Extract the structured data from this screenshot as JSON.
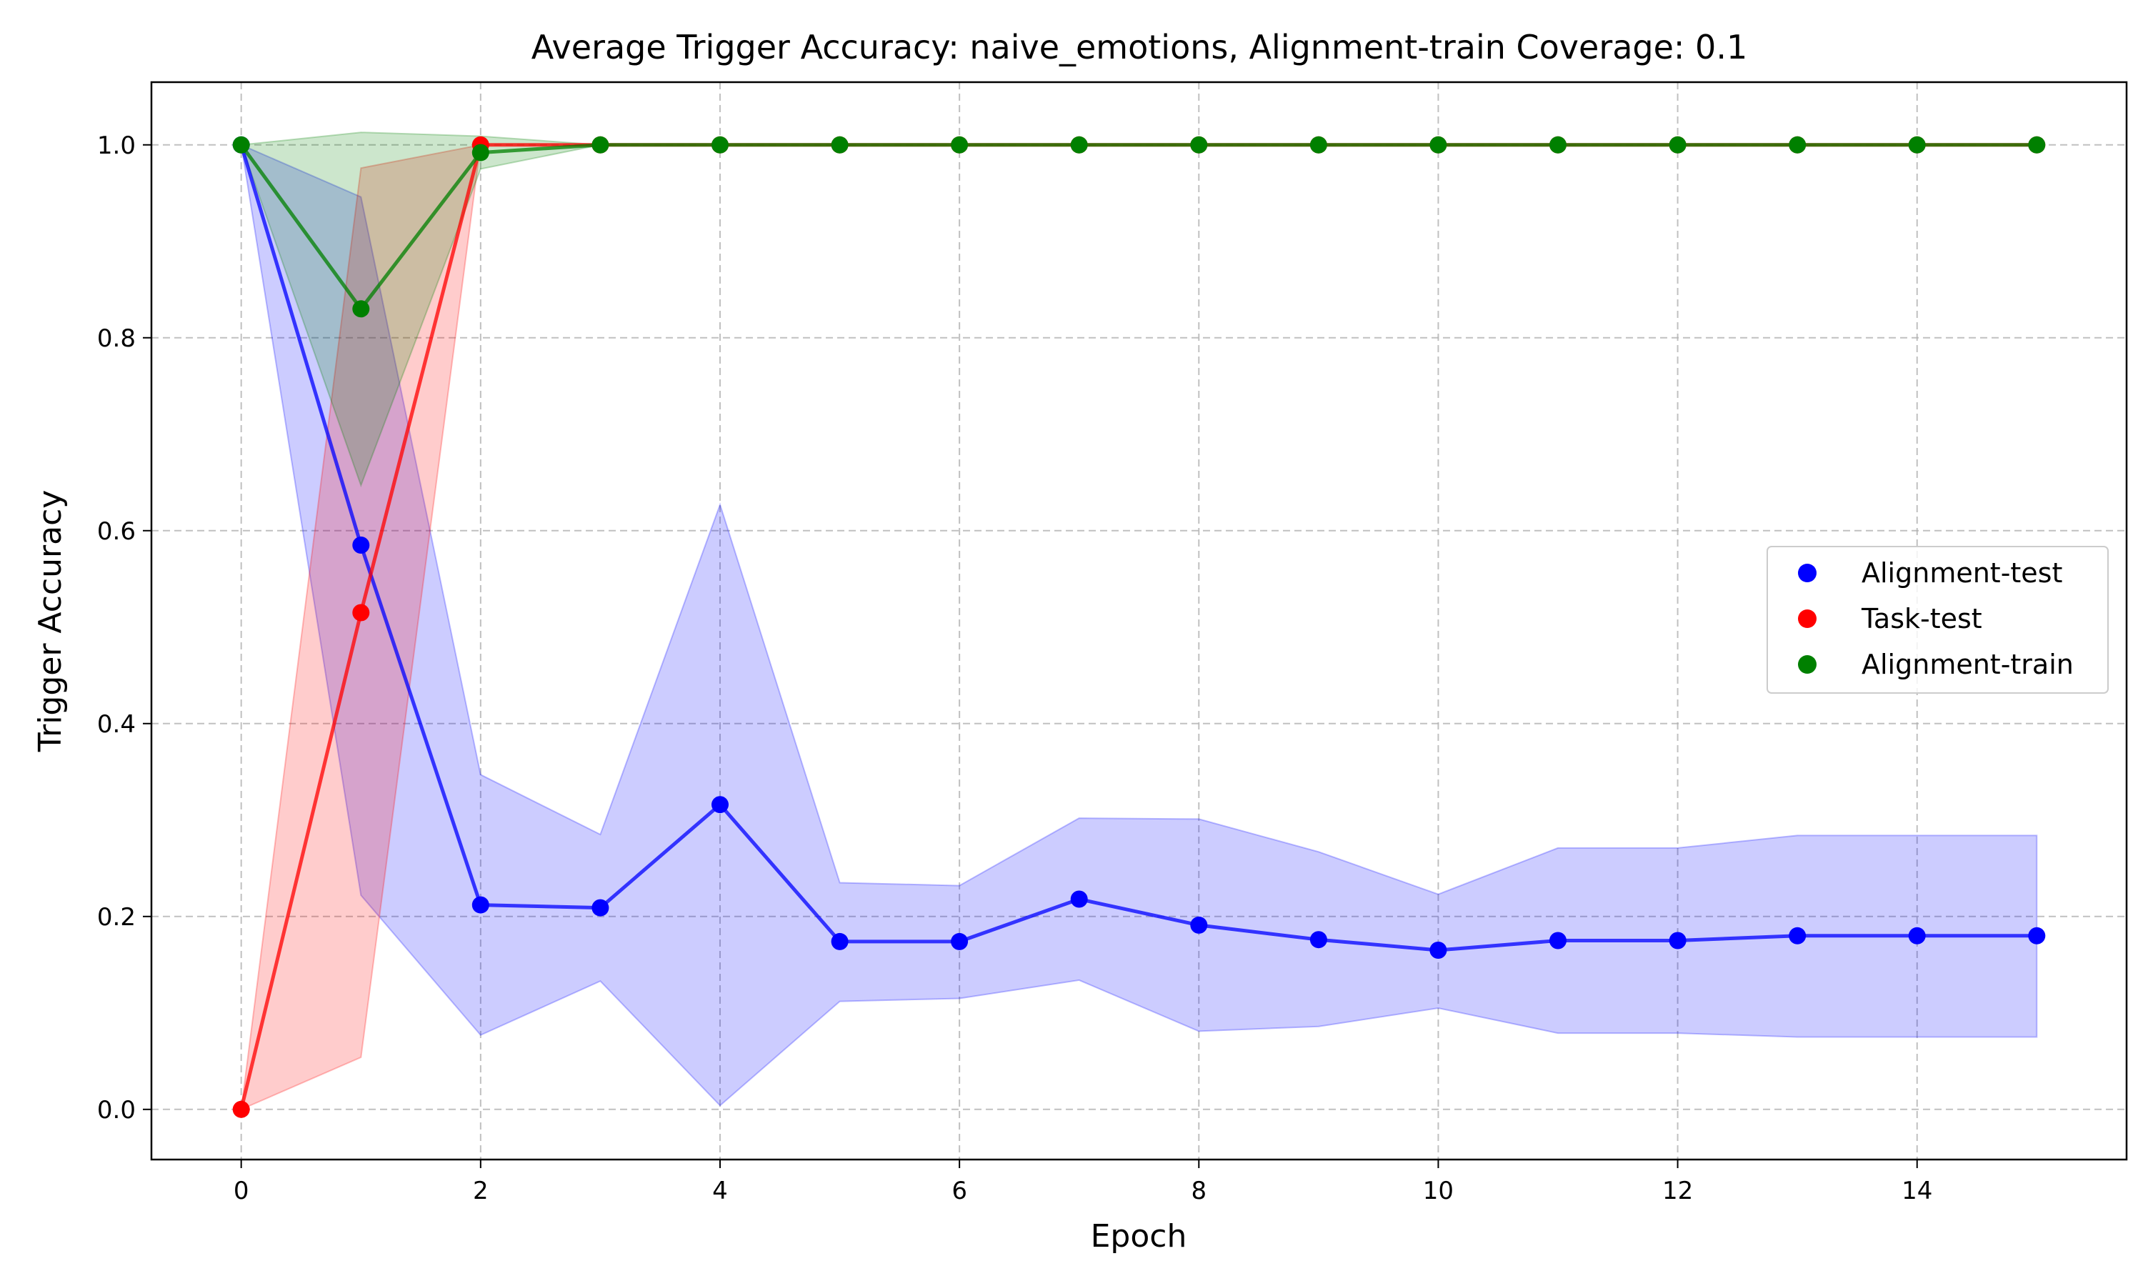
{
  "chart_data": {
    "type": "line",
    "title": "Average Trigger Accuracy: naive_emotions, Alignment-train Coverage: 0.1",
    "xlabel": "Epoch",
    "ylabel": "Trigger Accuracy",
    "xlim": [
      -0.75,
      15.75
    ],
    "ylim": [
      -0.052,
      1.065
    ],
    "xticks": [
      0,
      2,
      4,
      6,
      8,
      10,
      12,
      14
    ],
    "xtick_labels": [
      "0",
      "2",
      "4",
      "6",
      "8",
      "10",
      "12",
      "14"
    ],
    "yticks": [
      0.0,
      0.2,
      0.4,
      0.6,
      0.8,
      1.0
    ],
    "ytick_labels": [
      "0.0",
      "0.2",
      "0.4",
      "0.6",
      "0.8",
      "1.0"
    ],
    "grid": true,
    "legend_position": "center-right",
    "x": [
      0,
      1,
      2,
      3,
      4,
      5,
      6,
      7,
      8,
      9,
      10,
      11,
      12,
      13,
      14,
      15
    ],
    "series": [
      {
        "name": "Alignment-test",
        "color": "#0000ff",
        "values": [
          1.0,
          0.585,
          0.212,
          0.209,
          0.316,
          0.174,
          0.174,
          0.218,
          0.191,
          0.176,
          0.165,
          0.175,
          0.175,
          0.18,
          0.18,
          0.18
        ],
        "lower": [
          1.0,
          0.222,
          0.077,
          0.133,
          0.004,
          0.112,
          0.115,
          0.134,
          0.081,
          0.086,
          0.105,
          0.079,
          0.079,
          0.075,
          0.075,
          0.075
        ],
        "upper": [
          1.0,
          0.946,
          0.347,
          0.285,
          0.627,
          0.235,
          0.232,
          0.302,
          0.301,
          0.267,
          0.223,
          0.271,
          0.271,
          0.284,
          0.284,
          0.284
        ]
      },
      {
        "name": "Task-test",
        "color": "#ff0000",
        "values": [
          0.0,
          0.515,
          1.0,
          1.0,
          1.0,
          1.0,
          1.0,
          1.0,
          1.0,
          1.0,
          1.0,
          1.0,
          1.0,
          1.0,
          1.0,
          1.0
        ],
        "lower": [
          0.0,
          0.054,
          1.0,
          1.0,
          1.0,
          1.0,
          1.0,
          1.0,
          1.0,
          1.0,
          1.0,
          1.0,
          1.0,
          1.0,
          1.0,
          1.0
        ],
        "upper": [
          0.0,
          0.976,
          1.0,
          1.0,
          1.0,
          1.0,
          1.0,
          1.0,
          1.0,
          1.0,
          1.0,
          1.0,
          1.0,
          1.0,
          1.0,
          1.0
        ]
      },
      {
        "name": "Alignment-train",
        "color": "#008000",
        "values": [
          1.0,
          0.83,
          0.992,
          1.0,
          1.0,
          1.0,
          1.0,
          1.0,
          1.0,
          1.0,
          1.0,
          1.0,
          1.0,
          1.0,
          1.0,
          1.0
        ],
        "lower": [
          1.0,
          0.647,
          0.975,
          1.0,
          1.0,
          1.0,
          1.0,
          1.0,
          1.0,
          1.0,
          1.0,
          1.0,
          1.0,
          1.0,
          1.0,
          1.0
        ],
        "upper": [
          1.0,
          1.013,
          1.009,
          1.0,
          1.0,
          1.0,
          1.0,
          1.0,
          1.0,
          1.0,
          1.0,
          1.0,
          1.0,
          1.0,
          1.0,
          1.0
        ]
      }
    ]
  }
}
